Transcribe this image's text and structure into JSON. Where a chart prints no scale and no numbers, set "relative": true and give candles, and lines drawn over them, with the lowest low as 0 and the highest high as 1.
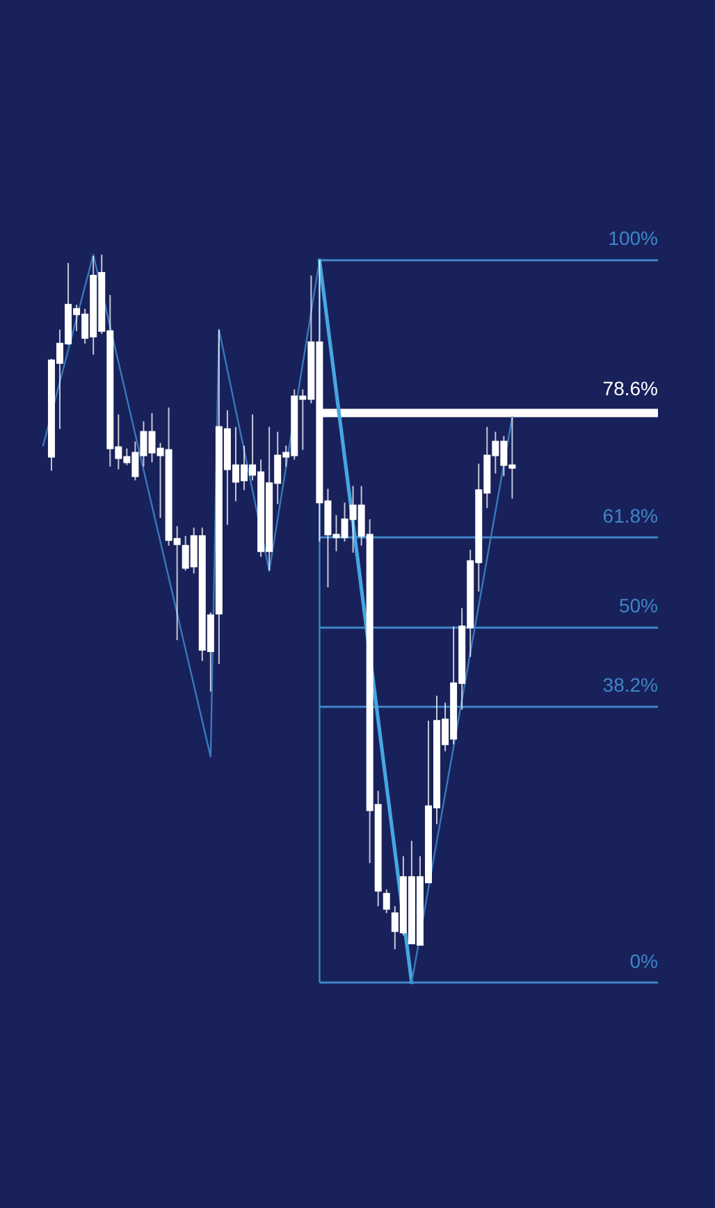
{
  "chart_data": {
    "type": "candlestick",
    "relative": true,
    "tick_labels": false,
    "color": "#ffffff",
    "categories": [
      null,
      null,
      null,
      null,
      null,
      null,
      null,
      null,
      null,
      null,
      null,
      null,
      null,
      null,
      null,
      null,
      null,
      null,
      null,
      null,
      null,
      null,
      null,
      null,
      null,
      null,
      null,
      null,
      null,
      null,
      null,
      null,
      null,
      null,
      null,
      null,
      null,
      null,
      null,
      null,
      null,
      null,
      null,
      null,
      null,
      null,
      null,
      null,
      null,
      null,
      null,
      null,
      null,
      null,
      null,
      null,
      null
    ],
    "ohlc": [
      null,
      [
        0.709,
        0.85,
        0.689,
        0.848
      ],
      [
        0.844,
        0.892,
        0.749,
        0.872
      ],
      [
        0.872,
        0.988,
        0.87,
        0.928
      ],
      [
        0.914,
        0.928,
        0.89,
        0.922
      ],
      [
        0.88,
        0.922,
        0.872,
        0.914
      ],
      [
        0.882,
        0.998,
        0.856,
        0.97
      ],
      [
        0.89,
        1.0,
        0.886,
        0.974
      ],
      [
        0.721,
        0.942,
        0.695,
        0.89
      ],
      [
        0.707,
        0.77,
        0.691,
        0.723
      ],
      [
        0.701,
        0.721,
        0.697,
        0.709
      ],
      [
        0.681,
        0.731,
        0.675,
        0.715
      ],
      [
        0.711,
        0.76,
        0.695,
        0.745
      ],
      [
        0.715,
        0.772,
        0.701,
        0.745
      ],
      [
        0.711,
        0.729,
        0.621,
        0.721
      ],
      [
        0.589,
        0.78,
        0.581,
        0.719
      ],
      [
        0.583,
        0.609,
        0.445,
        0.591
      ],
      [
        0.549,
        0.595,
        0.545,
        0.581
      ],
      [
        0.551,
        0.607,
        0.541,
        0.595
      ],
      [
        0.431,
        0.607,
        0.415,
        0.595
      ],
      [
        0.429,
        0.485,
        0.371,
        0.481
      ],
      [
        0.483,
        0.892,
        0.411,
        0.752
      ],
      [
        0.691,
        0.776,
        0.611,
        0.749
      ],
      [
        0.673,
        0.752,
        0.645,
        0.697
      ],
      [
        0.675,
        0.725,
        0.661,
        0.697
      ],
      [
        0.683,
        0.77,
        0.675,
        0.697
      ],
      [
        0.573,
        0.705,
        0.565,
        0.687
      ],
      [
        0.573,
        0.752,
        0.545,
        0.671
      ],
      [
        0.671,
        0.745,
        0.641,
        0.711
      ],
      [
        0.709,
        0.725,
        0.695,
        0.715
      ],
      [
        0.711,
        0.806,
        0.705,
        0.796
      ],
      [
        0.792,
        0.806,
        0.719,
        0.796
      ],
      [
        0.792,
        0.97,
        0.786,
        0.874
      ],
      [
        0.643,
        0.992,
        0.587,
        0.874
      ],
      [
        0.597,
        0.663,
        0.521,
        0.645
      ],
      [
        0.593,
        0.625,
        0.573,
        0.597
      ],
      [
        0.593,
        0.643,
        0.587,
        0.619
      ],
      [
        0.619,
        0.667,
        0.571,
        0.639
      ],
      [
        0.595,
        0.667,
        0.581,
        0.639
      ],
      [
        0.2,
        0.619,
        0.124,
        0.597
      ],
      [
        0.084,
        0.228,
        0.062,
        0.208
      ],
      [
        0.058,
        0.086,
        0.052,
        0.08
      ],
      [
        0.026,
        0.062,
        0.0,
        0.052
      ],
      [
        0.024,
        0.134,
        0.02,
        0.104
      ],
      [
        0.008,
        0.156,
        0.008,
        0.104
      ],
      [
        0.006,
        0.134,
        0.006,
        0.104
      ],
      [
        0.096,
        0.329,
        0.096,
        0.206
      ],
      [
        0.204,
        0.365,
        0.18,
        0.329
      ],
      [
        0.295,
        0.355,
        0.285,
        0.331
      ],
      [
        0.303,
        0.465,
        0.295,
        0.383
      ],
      [
        0.383,
        0.491,
        0.345,
        0.465
      ],
      [
        0.463,
        0.575,
        0.421,
        0.559
      ],
      [
        0.557,
        0.699,
        0.515,
        0.661
      ],
      [
        0.657,
        0.752,
        0.635,
        0.711
      ],
      [
        0.711,
        0.745,
        0.685,
        0.731
      ],
      [
        0.697,
        0.739,
        0.681,
        0.731
      ],
      [
        0.693,
        0.766,
        0.649,
        0.697
      ]
    ],
    "series": [
      {
        "type": "line",
        "color": "#3b78b8",
        "values": [
          0.725,
          null,
          null,
          null,
          null,
          null,
          1.0,
          null,
          null,
          null,
          null,
          null,
          null,
          null,
          null,
          null,
          null,
          null,
          null,
          null,
          0.277,
          0.892,
          null,
          null,
          null,
          null,
          null,
          0.545,
          null,
          null,
          null,
          null,
          null,
          0.992,
          null,
          null,
          null,
          null,
          null,
          null,
          null,
          null,
          null,
          null,
          null,
          null,
          null,
          null,
          null,
          null,
          null,
          null,
          null,
          null,
          null,
          null,
          null
        ]
      },
      {
        "type": "line",
        "color": "#46a6e0",
        "values": [
          null,
          null,
          null,
          null,
          null,
          null,
          null,
          null,
          null,
          null,
          null,
          null,
          null,
          null,
          null,
          null,
          null,
          null,
          null,
          null,
          null,
          null,
          null,
          null,
          null,
          null,
          null,
          null,
          null,
          null,
          null,
          null,
          null,
          0.992,
          null,
          null,
          null,
          null,
          null,
          null,
          null,
          null,
          null,
          null,
          -0.048,
          null,
          null,
          null,
          null,
          null,
          null,
          null,
          null,
          null,
          null,
          null,
          null
        ]
      },
      {
        "type": "line",
        "color": "#3b78b8",
        "values": [
          null,
          null,
          null,
          null,
          null,
          null,
          null,
          null,
          null,
          null,
          null,
          null,
          null,
          null,
          null,
          null,
          null,
          null,
          null,
          null,
          null,
          null,
          null,
          null,
          null,
          null,
          null,
          null,
          null,
          null,
          null,
          null,
          null,
          null,
          null,
          null,
          null,
          null,
          null,
          null,
          null,
          null,
          null,
          null,
          -0.048,
          null,
          null,
          null,
          null,
          null,
          null,
          null,
          null,
          null,
          null,
          null,
          0.766
        ]
      }
    ],
    "ref_lines": [
      {
        "axis": "y",
        "value": 0.992,
        "color": "#3f86c8"
      },
      {
        "axis": "y",
        "value": 0.772,
        "color": "#ffffff"
      },
      {
        "axis": "y",
        "value": 0.593,
        "color": "#3f86c8"
      },
      {
        "axis": "y",
        "value": 0.463,
        "color": "#3f86c8"
      },
      {
        "axis": "y",
        "value": 0.349,
        "color": "#3f86c8"
      },
      {
        "axis": "y",
        "value": -0.048,
        "color": "#3f86c8"
      }
    ],
    "annotations": [
      {
        "text": "100%",
        "y": 0.992
      },
      {
        "text": "78.6%",
        "y": 0.772
      },
      {
        "text": "61.8%",
        "y": 0.593
      },
      {
        "text": "50%",
        "y": 0.463
      },
      {
        "text": "38.2%",
        "y": 0.349
      },
      {
        "text": "0%",
        "y": -0.048
      }
    ]
  }
}
